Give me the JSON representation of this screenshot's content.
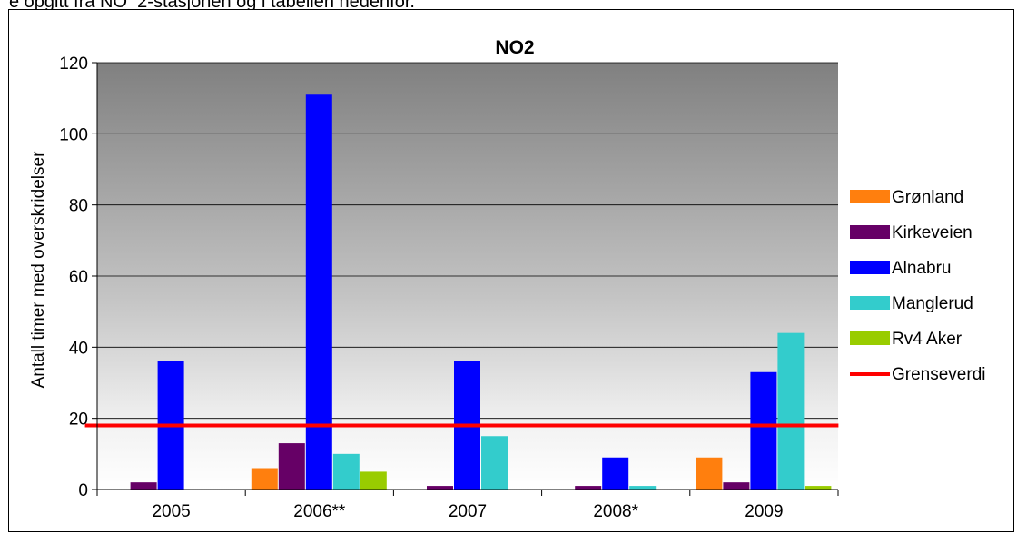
{
  "caption": "e opgitt fra NO_2-stasjonen og i tabellen nedenfor.",
  "chart_data": {
    "type": "bar",
    "title": "NO2",
    "xlabel": "",
    "ylabel": "Antall timer med overskridelser",
    "categories": [
      "2005",
      "2006**",
      "2007",
      "2008*",
      "2009"
    ],
    "ylim": [
      0,
      120
    ],
    "yticks": [
      0,
      20,
      40,
      60,
      80,
      100,
      120
    ],
    "grid": true,
    "legend_position": "right",
    "series": [
      {
        "name": "Grønland",
        "color": "#ff7f0e",
        "values": [
          0,
          6,
          0,
          0,
          9
        ]
      },
      {
        "name": "Kirkeveien",
        "color": "#660066",
        "values": [
          2,
          13,
          1,
          1,
          2
        ]
      },
      {
        "name": "Alnabru",
        "color": "#0000ff",
        "values": [
          36,
          111,
          36,
          9,
          33
        ]
      },
      {
        "name": "Manglerud",
        "color": "#33cccc",
        "values": [
          0,
          10,
          15,
          1,
          44
        ]
      },
      {
        "name": "Rv4 Aker",
        "color": "#99cc00",
        "values": [
          0,
          5,
          0,
          0,
          1
        ]
      }
    ],
    "reference_line": {
      "name": "Grenseverdi",
      "color": "#ff0000",
      "value": 18
    }
  }
}
